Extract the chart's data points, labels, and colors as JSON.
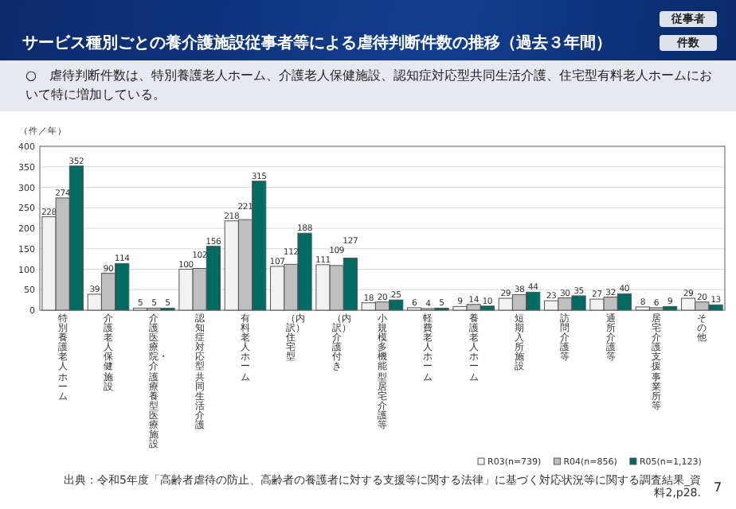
{
  "chart_data": {
    "type": "bar",
    "title": "サービス種別ごとの養介護施設従事者等による虐待判断件数の推移（過去３年間）",
    "subtitle": "○　虐待判断件数は、特別養護老人ホーム、介護老人保健施設、認知症対応型共同生活介護、住宅型有料老人ホームにおいて特に増加している。",
    "ylabel": "（件／年）",
    "categories": [
      "特別養護老人ホーム",
      "介護老人保健施設",
      "介護医療院・介護療養型医療施設",
      "認知症対応型共同生活介護",
      "有料老人ホーム",
      "（内訳）住宅型",
      "（内訳）介護付き",
      "小規模多機能型居宅介護等",
      "軽費老人ホーム",
      "養護老人ホーム",
      "短期入所施設",
      "訪問介護等",
      "通所介護等",
      "居宅介護支援事業所等",
      "その他"
    ],
    "series": [
      {
        "name": "R03(n=739)",
        "color": "#f2f2f2",
        "values": [
          228,
          39,
          5,
          100,
          218,
          107,
          111,
          18,
          6,
          9,
          29,
          23,
          27,
          8,
          29
        ]
      },
      {
        "name": "R04(n=856)",
        "color": "#bfbfbf",
        "values": [
          274,
          90,
          5,
          102,
          221,
          112,
          109,
          20,
          4,
          14,
          38,
          30,
          32,
          6,
          20
        ]
      },
      {
        "name": "R05(n=1,123)",
        "color": "#006b63",
        "values": [
          352,
          114,
          5,
          156,
          315,
          188,
          127,
          25,
          5,
          10,
          44,
          35,
          40,
          9,
          13
        ]
      }
    ],
    "ylim": [
      0,
      400
    ],
    "yticks": [
      0,
      50,
      100,
      150,
      200,
      250,
      300,
      350,
      400
    ],
    "grid": "y",
    "legend": "bottom right",
    "data_labels": true,
    "annotations": [
      "従事者",
      "件数",
      "出典：令和5年度「高齢者虐待の防止、高齢者の養護者に対する支援等に関する法律」に基づく対応状況等に関する調査結果_資料2,p28.",
      "7"
    ]
  }
}
